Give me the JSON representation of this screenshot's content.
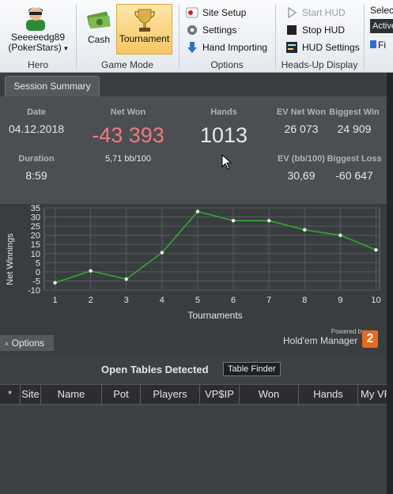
{
  "ribbon": {
    "hero": {
      "name_line1": "Seeeeedg89",
      "name_line2": "(PokerStars)",
      "dropdown": "▾",
      "group_label": "Hero"
    },
    "game_mode": {
      "cash_label": "Cash",
      "tournament_label": "Tournament",
      "group_label": "Game Mode"
    },
    "options": {
      "site_setup": "Site Setup",
      "settings": "Settings",
      "hand_importing": "Hand Importing",
      "group_label": "Options"
    },
    "hud": {
      "start_hud": "Start HUD",
      "stop_hud": "Stop HUD",
      "hud_settings": "HUD Settings",
      "group_label": "Heads-Up Display"
    },
    "extra": {
      "select": "Select",
      "active": "Active",
      "fi": "Fi"
    }
  },
  "tab": {
    "session_summary": "Session Summary"
  },
  "stats": {
    "date_label": "Date",
    "date": "04.12.2018",
    "net_won_label": "Net Won",
    "net_won": "-43 393",
    "net_won_bb": "5,71 bb/100",
    "hands_label": "Hands",
    "hands": "1013",
    "ev_net_won_label": "EV Net Won",
    "ev_net_won": "26 073",
    "biggest_win_label": "Biggest Win",
    "biggest_win": "24 909",
    "duration_label": "Duration",
    "duration": "8:59",
    "ev_bb_label": "EV (bb/100)",
    "ev_bb": "30,69",
    "biggest_loss_label": "Biggest Loss",
    "biggest_loss": "-60 647",
    "negative_color": "#f07a7a"
  },
  "chart_data": {
    "type": "line",
    "x": [
      1,
      2,
      3,
      4,
      5,
      6,
      7,
      8,
      9,
      10
    ],
    "series": [
      {
        "values": [
          -6,
          0.5,
          -4,
          10.5,
          33,
          28,
          28,
          23,
          20,
          12
        ]
      }
    ],
    "xlabel": "Tournaments",
    "ylabel": "Net Winnings",
    "xlim": [
      0.7,
      10.1
    ],
    "ylim": [
      -10,
      35
    ],
    "yticks": [
      -10,
      -5,
      0,
      5,
      10,
      15,
      20,
      25,
      30,
      35
    ],
    "xticks": [
      1,
      2,
      3,
      4,
      5,
      6,
      7,
      8,
      9,
      10
    ],
    "grid": true,
    "line_color": "#2faa2f"
  },
  "footer": {
    "options": "Options",
    "powered_by": "Powered by",
    "brand": "Hold'em Manager",
    "brand_num": "2"
  },
  "open_tables": {
    "title": "Open Tables Detected",
    "table_finder": "Table Finder",
    "columns": [
      "*",
      "Site",
      "Name",
      "Pot",
      "Players",
      "VP$IP",
      "Won",
      "Hands",
      "My VP"
    ]
  }
}
